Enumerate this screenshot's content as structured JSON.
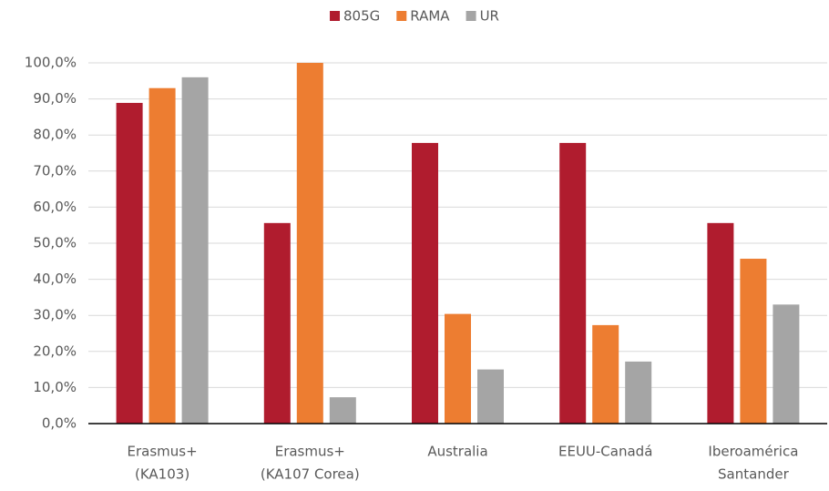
{
  "chart_data": {
    "type": "bar",
    "categories": [
      [
        "Erasmus+",
        "(KA103)"
      ],
      [
        "Erasmus+",
        "(KA107 Corea)"
      ],
      [
        "Australia"
      ],
      [
        "EEUU-Canadá"
      ],
      [
        "Iberoamérica",
        "Santander"
      ]
    ],
    "series": [
      {
        "name": "805G",
        "color": "#b01c2e",
        "values": [
          88.9,
          55.6,
          77.8,
          77.8,
          55.6
        ]
      },
      {
        "name": "RAMA",
        "color": "#ed7d31",
        "values": [
          93,
          100,
          30.4,
          27.3,
          45.7
        ]
      },
      {
        "name": "UR",
        "color": "#a5a5a5",
        "values": [
          96,
          7.3,
          15,
          17.2,
          33
        ]
      }
    ],
    "ylim": [
      0,
      100
    ],
    "yticks": [
      {
        "value": 0,
        "label": "0,0%"
      },
      {
        "value": 10,
        "label": "10,0%"
      },
      {
        "value": 20,
        "label": "20,0%"
      },
      {
        "value": 30,
        "label": "30,0%"
      },
      {
        "value": 40,
        "label": "40,0%"
      },
      {
        "value": 50,
        "label": "50,0%"
      },
      {
        "value": 60,
        "label": "60,0%"
      },
      {
        "value": 70,
        "label": "70,0%"
      },
      {
        "value": 80,
        "label": "80,0%"
      },
      {
        "value": 90,
        "label": "90,0%"
      },
      {
        "value": 100,
        "label": "100,0%"
      }
    ],
    "grid": true,
    "legend": "top"
  }
}
